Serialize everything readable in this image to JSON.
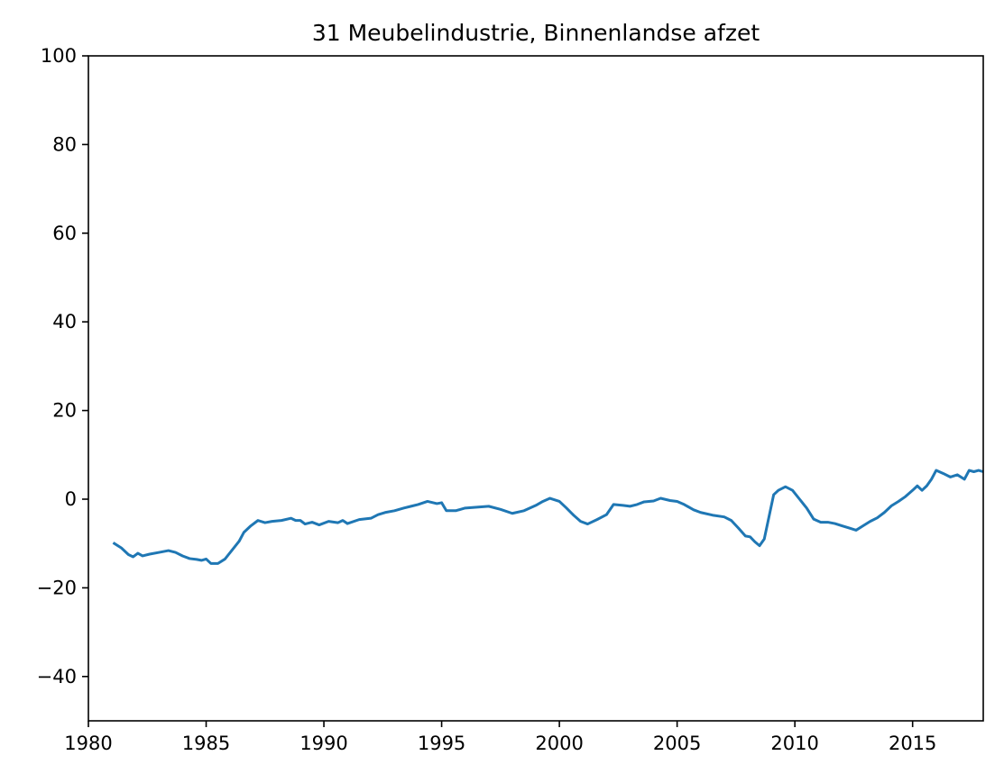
{
  "chart_data": {
    "type": "line",
    "title": "31 Meubelindustrie, Binnenlandse afzet",
    "xlabel": "",
    "ylabel": "",
    "xlim": [
      1980,
      2018
    ],
    "ylim": [
      -50,
      100
    ],
    "xticks": [
      1980,
      1985,
      1990,
      1995,
      2000,
      2005,
      2010,
      2015
    ],
    "xtick_labels": [
      "1980",
      "1985",
      "1990",
      "1995",
      "2000",
      "2005",
      "2010",
      "2015"
    ],
    "yticks": [
      -40,
      -20,
      0,
      20,
      40,
      60,
      80,
      100
    ],
    "ytick_labels": [
      "−40",
      "−20",
      "0",
      "20",
      "40",
      "60",
      "80",
      "100"
    ],
    "grid": false,
    "series": [
      {
        "color": "#1f77b4",
        "x": [
          1981.1,
          1981.4,
          1981.7,
          1981.9,
          1982.1,
          1982.3,
          1982.6,
          1983.0,
          1983.4,
          1983.7,
          1984.0,
          1984.3,
          1984.6,
          1984.8,
          1985.0,
          1985.2,
          1985.5,
          1985.8,
          1986.1,
          1986.4,
          1986.6,
          1986.9,
          1987.2,
          1987.5,
          1987.8,
          1988.2,
          1988.6,
          1988.8,
          1989.0,
          1989.2,
          1989.5,
          1989.8,
          1990.2,
          1990.6,
          1990.8,
          1991.0,
          1991.5,
          1992.0,
          1992.3,
          1992.6,
          1993.0,
          1993.4,
          1993.7,
          1994.0,
          1994.4,
          1994.8,
          1995.0,
          1995.2,
          1995.6,
          1996.0,
          1996.5,
          1997.0,
          1997.5,
          1998.0,
          1998.5,
          1999.0,
          1999.3,
          1999.6,
          2000.0,
          2000.3,
          2000.6,
          2000.9,
          2001.2,
          2001.6,
          2002.0,
          2002.3,
          2002.7,
          2003.0,
          2003.3,
          2003.6,
          2004.0,
          2004.3,
          2004.7,
          2005.0,
          2005.3,
          2005.7,
          2006.0,
          2006.5,
          2007.0,
          2007.3,
          2007.6,
          2007.9,
          2008.1,
          2008.3,
          2008.5,
          2008.7,
          2008.9,
          2009.1,
          2009.3,
          2009.6,
          2009.9,
          2010.2,
          2010.5,
          2010.8,
          2011.1,
          2011.4,
          2011.7,
          2012.0,
          2012.3,
          2012.6,
          2012.9,
          2013.2,
          2013.5,
          2013.8,
          2014.1,
          2014.4,
          2014.7,
          2015.0,
          2015.2,
          2015.4,
          2015.6,
          2015.8,
          2016.0,
          2016.3,
          2016.6,
          2016.9,
          2017.2,
          2017.4,
          2017.6,
          2017.8,
          2018.0
        ],
        "y": [
          -10,
          -11,
          -12.5,
          -13,
          -12.2,
          -12.8,
          -12.4,
          -12,
          -11.6,
          -12,
          -12.8,
          -13.4,
          -13.6,
          -13.8,
          -13.5,
          -14.5,
          -14.5,
          -13.5,
          -11.5,
          -9.5,
          -7.5,
          -6,
          -4.8,
          -5.3,
          -5,
          -4.8,
          -4.3,
          -4.8,
          -4.8,
          -5.6,
          -5.2,
          -5.8,
          -5,
          -5.3,
          -4.8,
          -5.5,
          -4.6,
          -4.3,
          -3.5,
          -3,
          -2.6,
          -2,
          -1.6,
          -1.2,
          -0.5,
          -1,
          -0.8,
          -2.6,
          -2.6,
          -2,
          -1.8,
          -1.6,
          -2.3,
          -3.2,
          -2.6,
          -1.4,
          -0.5,
          0.2,
          -0.5,
          -2,
          -3.6,
          -5,
          -5.6,
          -4.6,
          -3.5,
          -1.2,
          -1.4,
          -1.6,
          -1.2,
          -0.6,
          -0.4,
          0.2,
          -0.3,
          -0.5,
          -1.2,
          -2.4,
          -3,
          -3.6,
          -4,
          -4.8,
          -6.5,
          -8.3,
          -8.5,
          -9.6,
          -10.5,
          -9,
          -4,
          1,
          2,
          2.8,
          2,
          0,
          -2,
          -4.5,
          -5.2,
          -5.2,
          -5.5,
          -6,
          -6.5,
          -7,
          -6,
          -5,
          -4.2,
          -3,
          -1.5,
          -0.5,
          0.6,
          2,
          3,
          2,
          3,
          4.5,
          6.5,
          5.8,
          5,
          5.5,
          4.5,
          6.5,
          6.2,
          6.5,
          6.2
        ]
      }
    ]
  }
}
